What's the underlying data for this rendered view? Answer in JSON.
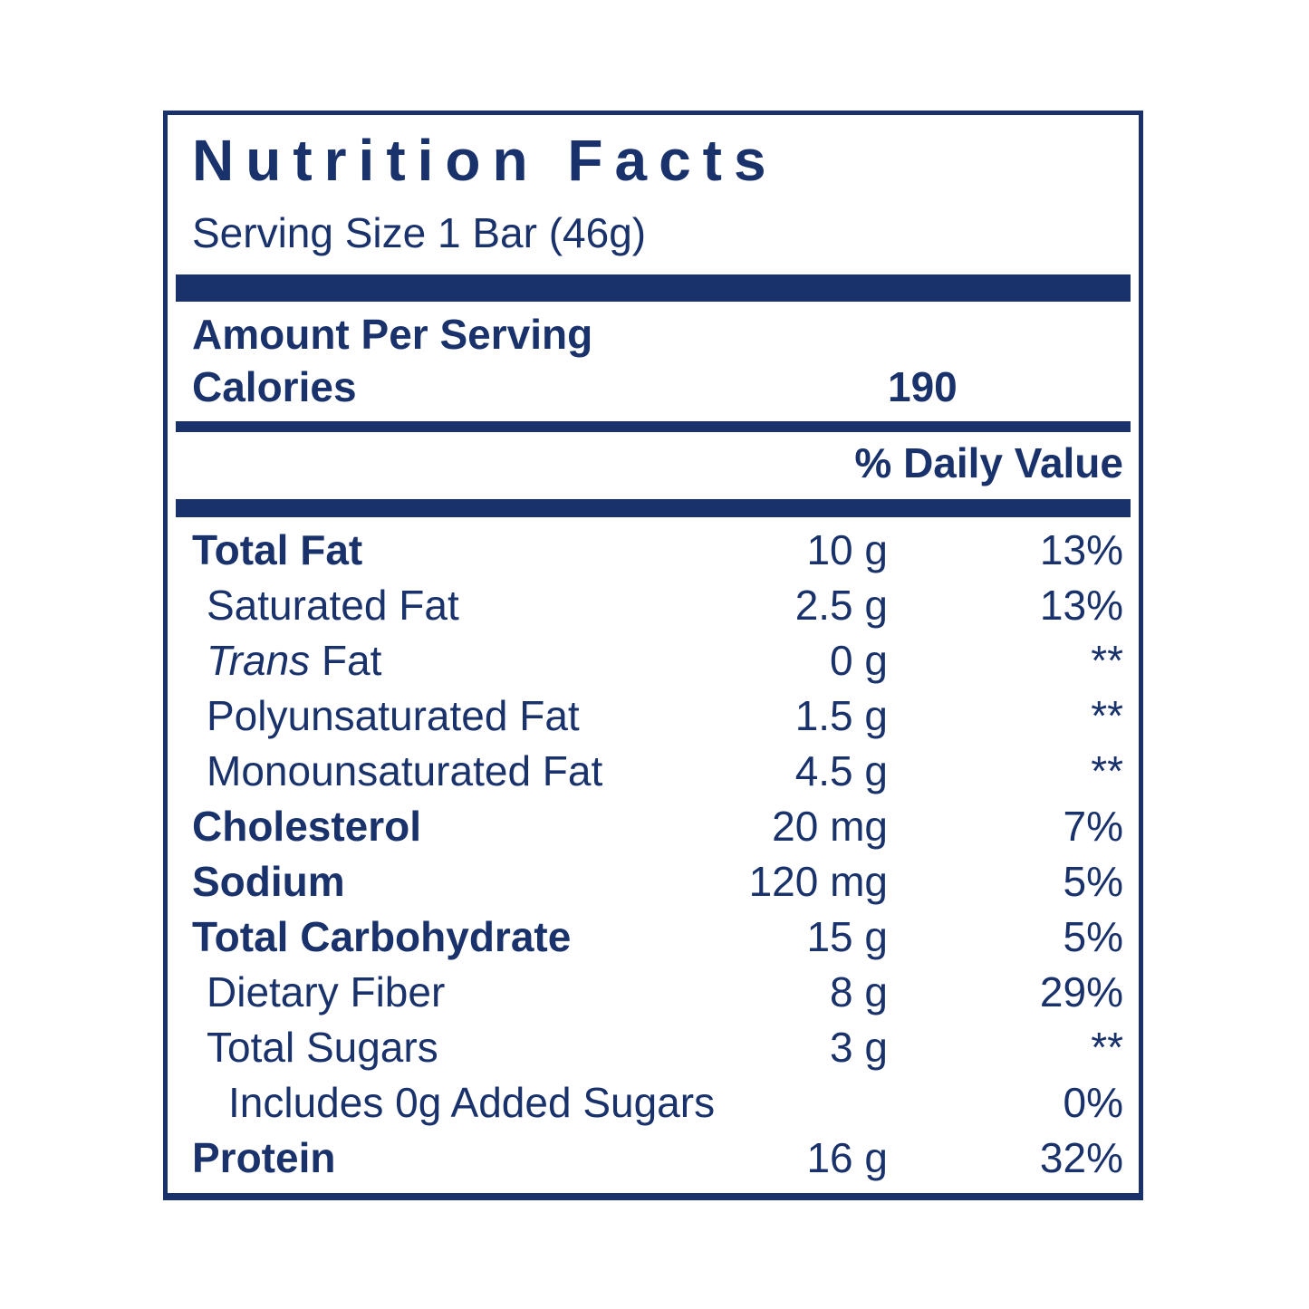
{
  "label": {
    "title": "Nutrition Facts",
    "serving_size": "Serving Size 1 Bar (46g)",
    "amount_per_serving": "Amount Per Serving",
    "calories_label": "Calories",
    "calories_value": "190",
    "daily_value_header": "% Daily Value",
    "rows": [
      {
        "name_italic": "",
        "name": "Total Fat",
        "amount": "10 g",
        "daily_value": "13%",
        "bold": true,
        "indent": 0
      },
      {
        "name_italic": "",
        "name": "Saturated Fat",
        "amount": "2.5 g",
        "daily_value": "13%",
        "bold": false,
        "indent": 1
      },
      {
        "name_italic": "Trans",
        "name": " Fat",
        "amount": "0 g",
        "daily_value": "**",
        "bold": false,
        "indent": 1
      },
      {
        "name_italic": "",
        "name": "Polyunsaturated Fat",
        "amount": "1.5 g",
        "daily_value": "**",
        "bold": false,
        "indent": 1
      },
      {
        "name_italic": "",
        "name": "Monounsaturated Fat",
        "amount": "4.5 g",
        "daily_value": "**",
        "bold": false,
        "indent": 1
      },
      {
        "name_italic": "",
        "name": "Cholesterol",
        "amount": "20 mg",
        "daily_value": "7%",
        "bold": true,
        "indent": 0
      },
      {
        "name_italic": "",
        "name": "Sodium",
        "amount": "120 mg",
        "daily_value": "5%",
        "bold": true,
        "indent": 0
      },
      {
        "name_italic": "",
        "name": "Total Carbohydrate",
        "amount": "15 g",
        "daily_value": "5%",
        "bold": true,
        "indent": 0
      },
      {
        "name_italic": "",
        "name": "Dietary Fiber",
        "amount": "8 g",
        "daily_value": "29%",
        "bold": false,
        "indent": 1
      },
      {
        "name_italic": "",
        "name": "Total Sugars",
        "amount": "3 g",
        "daily_value": "**",
        "bold": false,
        "indent": 1
      },
      {
        "name_italic": "",
        "name": "Includes 0g Added Sugars",
        "amount": "",
        "daily_value": "0%",
        "bold": false,
        "indent": 2
      },
      {
        "name_italic": "",
        "name": "Protein",
        "amount": "16 g",
        "daily_value": "32%",
        "bold": true,
        "indent": 0
      }
    ],
    "colors": {
      "navy": "#1a326b",
      "background": "#ffffff"
    }
  }
}
